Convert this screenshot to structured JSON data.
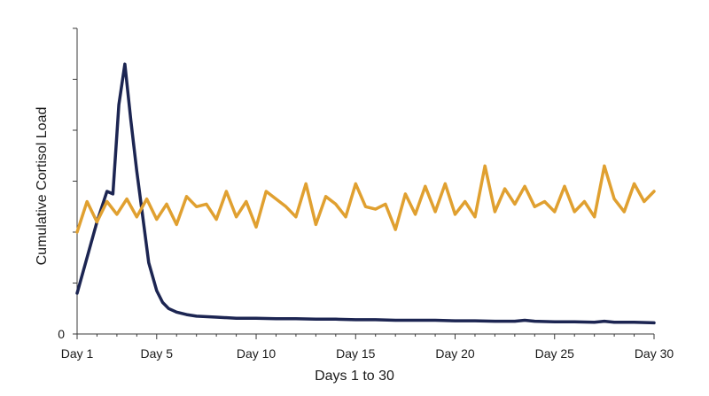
{
  "chart_data": {
    "type": "line",
    "title": "",
    "xlabel": "Days 1 to 30",
    "ylabel": "Cumulative Cortisol Load",
    "xlim": [
      1,
      30
    ],
    "ylim": [
      0,
      6
    ],
    "y_tick_labels": [
      {
        "value": 0,
        "label": "0"
      }
    ],
    "x_tick_labels": [
      {
        "value": 1,
        "label": "Day 1"
      },
      {
        "value": 5,
        "label": "Day 5"
      },
      {
        "value": 10,
        "label": "Day 10"
      },
      {
        "value": 15,
        "label": "Day 15"
      },
      {
        "value": 20,
        "label": "Day 20"
      },
      {
        "value": 25,
        "label": "Day 25"
      },
      {
        "value": 30,
        "label": "Day 30"
      }
    ],
    "grid": false,
    "legend": "none",
    "series": [
      {
        "color": "#1c2552",
        "x": [
          1,
          1.5,
          2,
          2.5,
          2.8,
          3.1,
          3.4,
          3.7,
          4,
          4.3,
          4.6,
          5,
          5.3,
          5.6,
          6,
          6.5,
          7,
          8,
          9,
          10,
          11,
          12,
          13,
          14,
          15,
          16,
          17,
          18,
          19,
          20,
          21,
          22,
          23,
          23.5,
          24,
          25,
          26,
          27,
          27.5,
          28,
          29,
          30
        ],
        "y": [
          0.8,
          1.5,
          2.2,
          2.8,
          2.75,
          4.5,
          5.3,
          4.2,
          3.2,
          2.3,
          1.4,
          0.85,
          0.62,
          0.5,
          0.43,
          0.38,
          0.35,
          0.33,
          0.31,
          0.31,
          0.3,
          0.3,
          0.29,
          0.29,
          0.28,
          0.28,
          0.27,
          0.27,
          0.27,
          0.26,
          0.26,
          0.25,
          0.25,
          0.27,
          0.25,
          0.24,
          0.24,
          0.23,
          0.25,
          0.23,
          0.23,
          0.22
        ]
      },
      {
        "color": "#e0a030",
        "x": [
          1,
          1.5,
          2,
          2.5,
          3,
          3.5,
          4,
          4.5,
          5,
          5.5,
          6,
          6.5,
          7,
          7.5,
          8,
          8.5,
          9,
          9.5,
          10,
          10.5,
          11,
          11.5,
          12,
          12.5,
          13,
          13.5,
          14,
          14.5,
          15,
          15.5,
          16,
          16.5,
          17,
          17.5,
          18,
          18.5,
          19,
          19.5,
          20,
          20.5,
          21,
          21.5,
          22,
          22.5,
          23,
          23.5,
          24,
          24.5,
          25,
          25.5,
          26,
          26.5,
          27,
          27.5,
          28,
          28.5,
          29,
          29.5,
          30
        ],
        "y": [
          2.0,
          2.6,
          2.2,
          2.6,
          2.35,
          2.65,
          2.3,
          2.65,
          2.25,
          2.55,
          2.15,
          2.7,
          2.5,
          2.55,
          2.25,
          2.8,
          2.3,
          2.6,
          2.1,
          2.8,
          2.65,
          2.5,
          2.3,
          2.95,
          2.15,
          2.7,
          2.55,
          2.3,
          2.95,
          2.5,
          2.45,
          2.55,
          2.05,
          2.75,
          2.35,
          2.9,
          2.4,
          2.95,
          2.35,
          2.6,
          2.3,
          3.3,
          2.4,
          2.85,
          2.55,
          2.9,
          2.5,
          2.6,
          2.4,
          2.9,
          2.4,
          2.6,
          2.3,
          3.3,
          2.65,
          2.4,
          2.95,
          2.6,
          2.8
        ]
      }
    ]
  }
}
